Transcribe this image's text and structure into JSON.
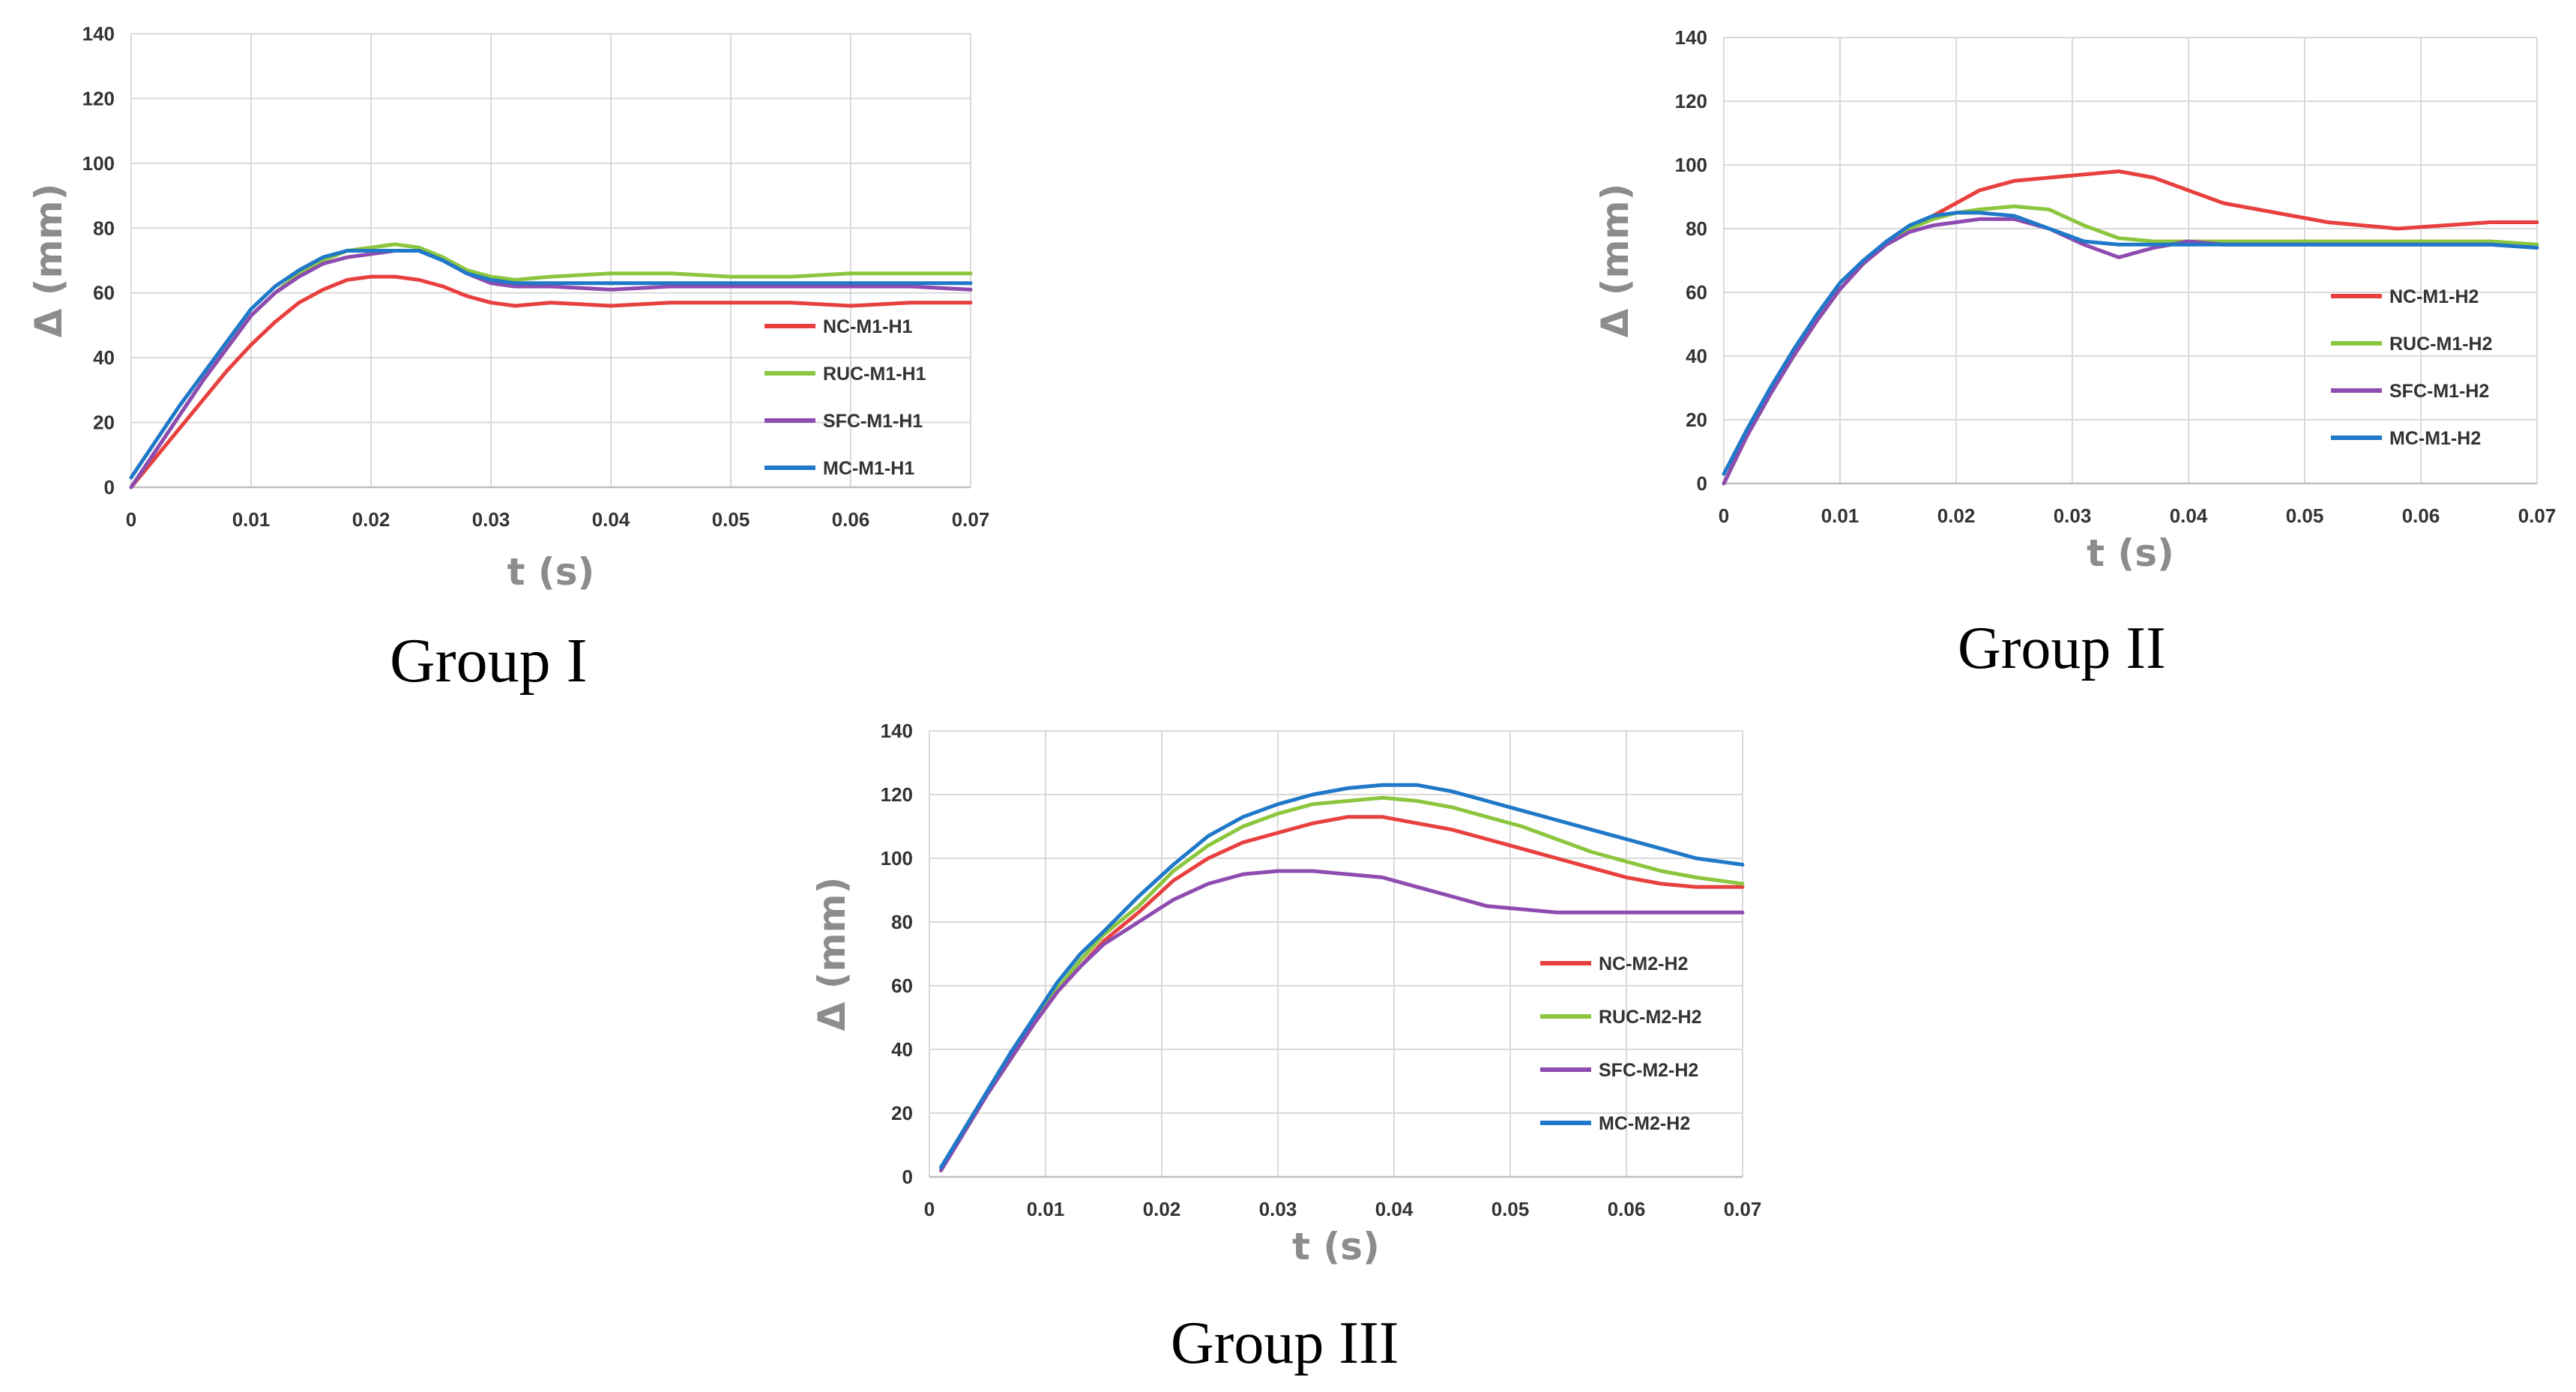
{
  "chart_data": [
    {
      "type": "line",
      "caption": "Group I",
      "xlabel": "t (s)",
      "ylabel": "Δ (mm)",
      "xlim": [
        0,
        0.07
      ],
      "ylim": [
        0,
        140
      ],
      "xticks": [
        "0",
        "0.01",
        "0.02",
        "0.03",
        "0.04",
        "0.05",
        "0.06",
        "0.07"
      ],
      "yticks": [
        "0",
        "20",
        "40",
        "60",
        "80",
        "100",
        "120",
        "140"
      ],
      "grid": true,
      "legend": "right",
      "series": [
        {
          "name": "NC-M1-H1",
          "color": "#e8403e",
          "x": [
            0,
            0.002,
            0.004,
            0.006,
            0.008,
            0.01,
            0.012,
            0.014,
            0.016,
            0.018,
            0.02,
            0.022,
            0.024,
            0.026,
            0.028,
            0.03,
            0.032,
            0.035,
            0.04,
            0.045,
            0.05,
            0.055,
            0.06,
            0.065,
            0.07
          ],
          "y": [
            0,
            9,
            18,
            27,
            36,
            44,
            51,
            57,
            61,
            64,
            65,
            65,
            64,
            62,
            59,
            57,
            56,
            57,
            56,
            57,
            57,
            57,
            56,
            57,
            57
          ]
        },
        {
          "name": "RUC-M1-H1",
          "color": "#8cc63f",
          "x": [
            0,
            0.002,
            0.004,
            0.006,
            0.008,
            0.01,
            0.012,
            0.014,
            0.016,
            0.018,
            0.02,
            0.022,
            0.024,
            0.026,
            0.028,
            0.03,
            0.032,
            0.035,
            0.04,
            0.045,
            0.05,
            0.055,
            0.06,
            0.065,
            0.07
          ],
          "y": [
            0,
            11,
            22,
            33,
            43,
            53,
            60,
            66,
            70,
            73,
            74,
            75,
            74,
            71,
            67,
            65,
            64,
            65,
            66,
            66,
            65,
            65,
            66,
            66,
            66
          ]
        },
        {
          "name": "SFC-M1-H1",
          "color": "#8e4bb0",
          "x": [
            0,
            0.002,
            0.004,
            0.006,
            0.008,
            0.01,
            0.012,
            0.014,
            0.016,
            0.018,
            0.02,
            0.022,
            0.024,
            0.026,
            0.028,
            0.03,
            0.032,
            0.035,
            0.04,
            0.045,
            0.05,
            0.055,
            0.06,
            0.065,
            0.07
          ],
          "y": [
            0,
            11,
            22,
            33,
            43,
            53,
            60,
            65,
            69,
            71,
            72,
            73,
            73,
            70,
            66,
            63,
            62,
            62,
            61,
            62,
            62,
            62,
            62,
            62,
            61
          ]
        },
        {
          "name": "MC-M1-H1",
          "color": "#1f78c8",
          "x": [
            0,
            0.002,
            0.004,
            0.006,
            0.008,
            0.01,
            0.012,
            0.014,
            0.016,
            0.018,
            0.02,
            0.022,
            0.024,
            0.026,
            0.028,
            0.03,
            0.032,
            0.035,
            0.04,
            0.045,
            0.05,
            0.055,
            0.06,
            0.065,
            0.07
          ],
          "y": [
            3,
            14,
            25,
            35,
            45,
            55,
            62,
            67,
            71,
            73,
            73,
            73,
            73,
            70,
            66,
            64,
            63,
            63,
            63,
            63,
            63,
            63,
            63,
            63,
            63
          ]
        }
      ]
    },
    {
      "type": "line",
      "caption": "Group II",
      "xlabel": "t (s)",
      "ylabel": "Δ (mm)",
      "xlim": [
        0,
        0.07
      ],
      "ylim": [
        0,
        140
      ],
      "xticks": [
        "0",
        "0.01",
        "0.02",
        "0.03",
        "0.04",
        "0.05",
        "0.06",
        "0.07"
      ],
      "yticks": [
        "0",
        "20",
        "40",
        "60",
        "80",
        "100",
        "120",
        "140"
      ],
      "grid": true,
      "legend": "right",
      "series": [
        {
          "name": "NC-M1-H2",
          "color": "#e8403e",
          "x": [
            0,
            0.002,
            0.004,
            0.006,
            0.008,
            0.01,
            0.012,
            0.014,
            0.016,
            0.018,
            0.02,
            0.022,
            0.025,
            0.028,
            0.031,
            0.034,
            0.037,
            0.04,
            0.043,
            0.046,
            0.049,
            0.052,
            0.055,
            0.058,
            0.062,
            0.066,
            0.07
          ],
          "y": [
            0,
            15,
            28,
            40,
            51,
            61,
            69,
            76,
            80,
            84,
            88,
            92,
            95,
            96,
            97,
            98,
            96,
            92,
            88,
            86,
            84,
            82,
            81,
            80,
            81,
            82,
            82
          ]
        },
        {
          "name": "RUC-M1-H2",
          "color": "#8cc63f",
          "x": [
            0,
            0.002,
            0.004,
            0.006,
            0.008,
            0.01,
            0.012,
            0.014,
            0.016,
            0.018,
            0.02,
            0.022,
            0.025,
            0.028,
            0.031,
            0.034,
            0.037,
            0.04,
            0.043,
            0.046,
            0.049,
            0.052,
            0.055,
            0.058,
            0.062,
            0.066,
            0.07
          ],
          "y": [
            0,
            15,
            28,
            40,
            51,
            61,
            69,
            76,
            80,
            83,
            85,
            86,
            87,
            86,
            81,
            77,
            76,
            76,
            76,
            76,
            76,
            76,
            76,
            76,
            76,
            76,
            75
          ]
        },
        {
          "name": "SFC-M1-H2",
          "color": "#8e4bb0",
          "x": [
            0,
            0.002,
            0.004,
            0.006,
            0.008,
            0.01,
            0.012,
            0.014,
            0.016,
            0.018,
            0.02,
            0.022,
            0.025,
            0.028,
            0.031,
            0.034,
            0.037,
            0.04,
            0.043,
            0.046,
            0.049,
            0.052,
            0.055,
            0.058,
            0.062,
            0.066,
            0.07
          ],
          "y": [
            0,
            15,
            28,
            40,
            51,
            61,
            69,
            75,
            79,
            81,
            82,
            83,
            83,
            80,
            75,
            71,
            74,
            76,
            75,
            75,
            75,
            75,
            75,
            75,
            75,
            75,
            74
          ]
        },
        {
          "name": "MC-M1-H2",
          "color": "#1f78c8",
          "x": [
            0,
            0.002,
            0.004,
            0.006,
            0.008,
            0.01,
            0.012,
            0.014,
            0.016,
            0.018,
            0.02,
            0.022,
            0.025,
            0.028,
            0.031,
            0.034,
            0.037,
            0.04,
            0.043,
            0.046,
            0.049,
            0.052,
            0.055,
            0.058,
            0.062,
            0.066,
            0.07
          ],
          "y": [
            3,
            17,
            30,
            42,
            53,
            63,
            70,
            76,
            81,
            84,
            85,
            85,
            84,
            80,
            76,
            75,
            75,
            75,
            75,
            75,
            75,
            75,
            75,
            75,
            75,
            75,
            74
          ]
        }
      ]
    },
    {
      "type": "line",
      "caption": "Group III",
      "xlabel": "t (s)",
      "ylabel": "Δ (mm)",
      "xlim": [
        0,
        0.07
      ],
      "ylim": [
        0,
        140
      ],
      "xticks": [
        "0",
        "0.01",
        "0.02",
        "0.03",
        "0.04",
        "0.05",
        "0.06",
        "0.07"
      ],
      "yticks": [
        "0",
        "20",
        "40",
        "60",
        "80",
        "100",
        "120",
        "140"
      ],
      "grid": true,
      "legend": "right",
      "series": [
        {
          "name": "NC-M2-H2",
          "color": "#e8403e",
          "x": [
            0.001,
            0.003,
            0.005,
            0.007,
            0.009,
            0.011,
            0.013,
            0.015,
            0.018,
            0.021,
            0.024,
            0.027,
            0.03,
            0.033,
            0.036,
            0.039,
            0.042,
            0.045,
            0.048,
            0.051,
            0.054,
            0.057,
            0.06,
            0.063,
            0.066,
            0.07
          ],
          "y": [
            2,
            14,
            26,
            37,
            48,
            58,
            66,
            74,
            83,
            93,
            100,
            105,
            108,
            111,
            113,
            113,
            111,
            109,
            106,
            103,
            100,
            97,
            94,
            92,
            91,
            91
          ]
        },
        {
          "name": "RUC-M2-H2",
          "color": "#8cc63f",
          "x": [
            0.001,
            0.003,
            0.005,
            0.007,
            0.009,
            0.011,
            0.013,
            0.015,
            0.018,
            0.021,
            0.024,
            0.027,
            0.03,
            0.033,
            0.036,
            0.039,
            0.042,
            0.045,
            0.048,
            0.051,
            0.054,
            0.057,
            0.06,
            0.063,
            0.066,
            0.07
          ],
          "y": [
            2,
            14,
            26,
            37,
            48,
            59,
            68,
            76,
            85,
            96,
            104,
            110,
            114,
            117,
            118,
            119,
            118,
            116,
            113,
            110,
            106,
            102,
            99,
            96,
            94,
            92
          ]
        },
        {
          "name": "SFC-M2-H2",
          "color": "#8e4bb0",
          "x": [
            0.001,
            0.003,
            0.005,
            0.007,
            0.009,
            0.011,
            0.013,
            0.015,
            0.018,
            0.021,
            0.024,
            0.027,
            0.03,
            0.033,
            0.036,
            0.039,
            0.042,
            0.045,
            0.048,
            0.051,
            0.054,
            0.057,
            0.06,
            0.063,
            0.066,
            0.07
          ],
          "y": [
            2,
            14,
            26,
            37,
            48,
            58,
            66,
            73,
            80,
            87,
            92,
            95,
            96,
            96,
            95,
            94,
            91,
            88,
            85,
            84,
            83,
            83,
            83,
            83,
            83,
            83
          ]
        },
        {
          "name": "MC-M2-H2",
          "color": "#1f78c8",
          "x": [
            0.001,
            0.003,
            0.005,
            0.007,
            0.009,
            0.011,
            0.013,
            0.015,
            0.018,
            0.021,
            0.024,
            0.027,
            0.03,
            0.033,
            0.036,
            0.039,
            0.042,
            0.045,
            0.048,
            0.051,
            0.054,
            0.057,
            0.06,
            0.063,
            0.066,
            0.07
          ],
          "y": [
            3,
            15,
            27,
            39,
            50,
            61,
            70,
            77,
            88,
            98,
            107,
            113,
            117,
            120,
            122,
            123,
            123,
            121,
            118,
            115,
            112,
            109,
            106,
            103,
            100,
            98
          ]
        }
      ]
    }
  ]
}
